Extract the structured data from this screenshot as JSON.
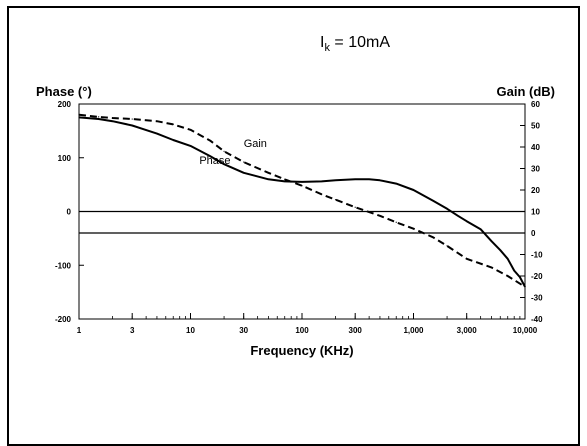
{
  "chart_data": {
    "type": "line",
    "title": {
      "main": "I",
      "subscript": "k",
      "rest": " = 10mA"
    },
    "xlabel": "Frequency (KHz)",
    "ylabel_left": "Phase (°)",
    "ylabel_right": "Gain (dB)",
    "xscale": "log",
    "xlim": [
      1,
      10000
    ],
    "ylim_left": [
      -200,
      200
    ],
    "ylim_right": [
      -40,
      60
    ],
    "x_ticks": [
      1,
      3,
      10,
      30,
      100,
      300,
      1000,
      3000,
      10000
    ],
    "x_tick_labels": [
      "1",
      "3",
      "10",
      "30",
      "100",
      "300",
      "1,000",
      "3,000",
      "10,000"
    ],
    "y_left_ticks": [
      -200,
      -100,
      0,
      100,
      200
    ],
    "y_left_tick_labels": [
      "-200",
      "-100",
      "0",
      "100",
      "200"
    ],
    "y_right_ticks": [
      -40,
      -30,
      -20,
      -10,
      0,
      10,
      20,
      30,
      40,
      50,
      60
    ],
    "y_right_tick_labels": [
      "-40",
      "-30",
      "-20",
      "-10",
      "0",
      "10",
      "20",
      "30",
      "40",
      "50",
      "60"
    ],
    "reference_lines": [
      {
        "axis": "left",
        "y": 0
      },
      {
        "axis": "right",
        "y": 0
      }
    ],
    "series": [
      {
        "name": "Phase",
        "axis": "left",
        "style": "solid",
        "label_at": [
          12,
          88
        ],
        "x": [
          1,
          1.5,
          2,
          3,
          5,
          7,
          10,
          15,
          20,
          30,
          50,
          70,
          100,
          150,
          200,
          300,
          400,
          500,
          700,
          1000,
          1500,
          2000,
          2500,
          3000,
          4000,
          5000,
          6000,
          7000,
          8000,
          9000,
          10000
        ],
        "y": [
          175,
          172,
          168,
          160,
          145,
          133,
          122,
          103,
          88,
          72,
          60,
          56,
          55,
          56,
          58,
          60,
          60,
          58,
          52,
          40,
          20,
          5,
          -8,
          -18,
          -33,
          -55,
          -72,
          -88,
          -110,
          -122,
          -140
        ]
      },
      {
        "name": "Gain",
        "axis": "right",
        "style": "dashed",
        "label_at": [
          30,
          120
        ],
        "x": [
          1,
          1.5,
          2,
          3,
          5,
          7,
          10,
          15,
          20,
          30,
          50,
          70,
          100,
          150,
          200,
          300,
          500,
          700,
          1000,
          1500,
          2000,
          3000,
          5000,
          7000,
          10000
        ],
        "y": [
          55,
          54,
          53.5,
          53,
          52,
          50.5,
          48,
          43,
          38,
          33,
          28,
          25,
          22,
          18,
          15.5,
          12,
          8,
          5,
          2,
          -2,
          -6,
          -12,
          -16,
          -20,
          -25
        ]
      }
    ]
  }
}
